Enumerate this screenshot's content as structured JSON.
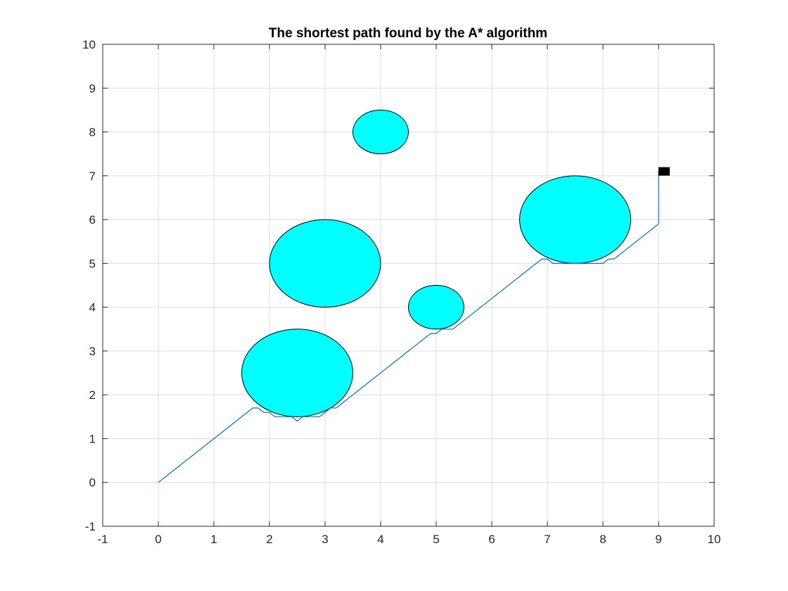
{
  "chart_data": {
    "type": "scatter",
    "title": "The shortest path found by the A* algorithm",
    "xlabel": "",
    "ylabel": "",
    "xlim": [
      -1,
      10
    ],
    "ylim": [
      -1,
      10
    ],
    "grid": true,
    "x_ticks": [
      -1,
      0,
      1,
      2,
      3,
      4,
      5,
      6,
      7,
      8,
      9,
      10
    ],
    "y_ticks": [
      -1,
      0,
      1,
      2,
      3,
      4,
      5,
      6,
      7,
      8,
      9,
      10
    ],
    "obstacles": [
      {
        "cx": 4.0,
        "cy": 8.0,
        "r": 0.5
      },
      {
        "cx": 3.0,
        "cy": 5.0,
        "r": 1.0
      },
      {
        "cx": 5.0,
        "cy": 4.0,
        "r": 0.5
      },
      {
        "cx": 2.5,
        "cy": 2.5,
        "r": 1.0
      },
      {
        "cx": 7.5,
        "cy": 6.0,
        "r": 1.0
      }
    ],
    "path": {
      "x": [
        0,
        1.7,
        1.8,
        1.9,
        2.0,
        2.1,
        2.2,
        2.3,
        2.4,
        2.5,
        2.6,
        2.7,
        2.8,
        2.9,
        3.0,
        3.1,
        3.2,
        3.3,
        3.4,
        3.5,
        3.6,
        3.7,
        3.8,
        3.9,
        4.0,
        4.1,
        4.2,
        4.3,
        4.4,
        4.5,
        4.6,
        4.7,
        4.8,
        4.9,
        5.0,
        5.1,
        5.2,
        5.3,
        6.9,
        7.0,
        7.1,
        7.9,
        8.0,
        8.1,
        8.2,
        9.0,
        9.0
      ],
      "y": [
        0,
        1.7,
        1.7,
        1.6,
        1.6,
        1.5,
        1.5,
        1.5,
        1.5,
        1.4,
        1.5,
        1.5,
        1.5,
        1.5,
        1.6,
        1.7,
        1.7,
        1.8,
        1.9,
        2.0,
        2.1,
        2.2,
        2.3,
        2.4,
        2.5,
        2.6,
        2.7,
        2.8,
        2.9,
        3.0,
        3.1,
        3.2,
        3.3,
        3.4,
        3.4,
        3.5,
        3.5,
        3.5,
        5.1,
        5.1,
        5.0,
        5.0,
        5.0,
        5.1,
        5.1,
        5.9,
        7.1
      ]
    },
    "goal_marker": {
      "x": 9.1,
      "y": 7.1
    },
    "colors": {
      "obstacle_fill": "#00ffff",
      "obstacle_edge": "#000000",
      "path": "#0072bd",
      "goal": "#000000"
    }
  }
}
